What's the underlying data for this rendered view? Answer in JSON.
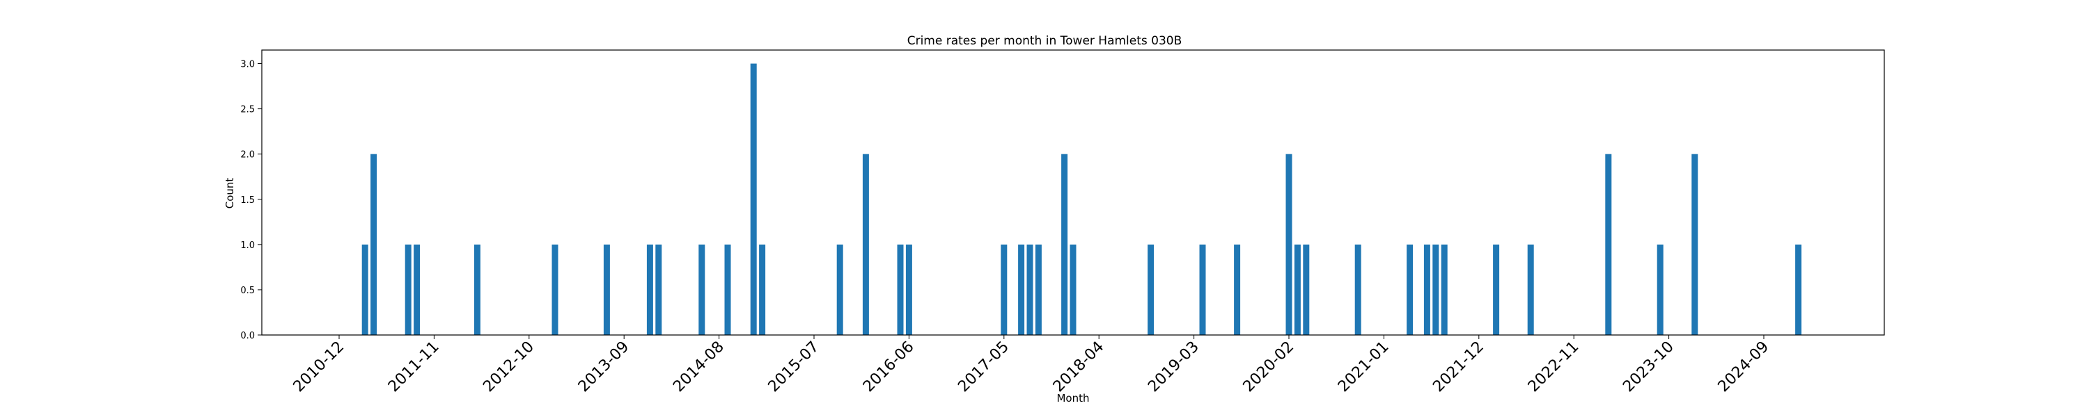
{
  "chart_data": {
    "type": "bar",
    "title": "Crime rates per month in Tower Hamlets 030B",
    "xlabel": "Month",
    "ylabel": "Count",
    "ylim": [
      0,
      3.15
    ],
    "yticks": [
      "0.0",
      "0.5",
      "1.0",
      "1.5",
      "2.0",
      "2.5",
      "3.0"
    ],
    "xticks": [
      "2010-12",
      "2011-11",
      "2012-10",
      "2013-09",
      "2014-08",
      "2015-07",
      "2016-06",
      "2017-05",
      "2018-04",
      "2019-03",
      "2020-02",
      "2021-01",
      "2021-12",
      "2022-11",
      "2023-10",
      "2024-09"
    ],
    "grid": false,
    "legend": "none",
    "color": "#1f77b4",
    "bars": [
      {
        "month": "2011-03",
        "value": 1
      },
      {
        "month": "2011-04",
        "value": 2
      },
      {
        "month": "2011-08",
        "value": 1
      },
      {
        "month": "2011-09",
        "value": 1
      },
      {
        "month": "2012-04",
        "value": 1
      },
      {
        "month": "2013-01",
        "value": 1
      },
      {
        "month": "2013-07",
        "value": 1
      },
      {
        "month": "2013-12",
        "value": 1
      },
      {
        "month": "2014-01",
        "value": 1
      },
      {
        "month": "2014-06",
        "value": 1
      },
      {
        "month": "2014-09",
        "value": 1
      },
      {
        "month": "2014-12",
        "value": 3
      },
      {
        "month": "2015-01",
        "value": 1
      },
      {
        "month": "2015-10",
        "value": 1
      },
      {
        "month": "2016-01",
        "value": 2
      },
      {
        "month": "2016-05",
        "value": 1
      },
      {
        "month": "2016-06",
        "value": 1
      },
      {
        "month": "2017-05",
        "value": 1
      },
      {
        "month": "2017-07",
        "value": 1
      },
      {
        "month": "2017-08",
        "value": 1
      },
      {
        "month": "2017-09",
        "value": 1
      },
      {
        "month": "2017-12",
        "value": 2
      },
      {
        "month": "2018-01",
        "value": 1
      },
      {
        "month": "2018-10",
        "value": 1
      },
      {
        "month": "2019-04",
        "value": 1
      },
      {
        "month": "2019-08",
        "value": 1
      },
      {
        "month": "2020-02",
        "value": 2
      },
      {
        "month": "2020-03",
        "value": 1
      },
      {
        "month": "2020-04",
        "value": 1
      },
      {
        "month": "2020-10",
        "value": 1
      },
      {
        "month": "2021-04",
        "value": 1
      },
      {
        "month": "2021-06",
        "value": 1
      },
      {
        "month": "2021-07",
        "value": 1
      },
      {
        "month": "2021-08",
        "value": 1
      },
      {
        "month": "2022-02",
        "value": 1
      },
      {
        "month": "2022-06",
        "value": 1
      },
      {
        "month": "2023-03",
        "value": 2
      },
      {
        "month": "2023-09",
        "value": 1
      },
      {
        "month": "2024-01",
        "value": 2
      },
      {
        "month": "2025-01",
        "value": 1
      }
    ]
  }
}
